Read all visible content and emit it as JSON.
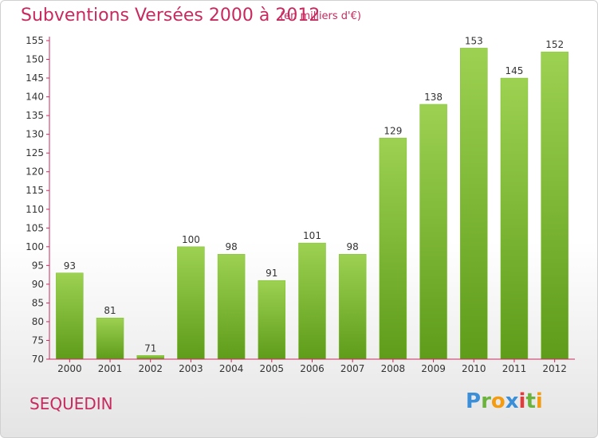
{
  "title": "Subventions Versées 2000 à 2012",
  "subtitle": "(en milliers d'€)",
  "city": "SEQUEDIN",
  "logo": {
    "text": "Proxiti",
    "letters": [
      {
        "ch": "P",
        "color": "#3a8fd8"
      },
      {
        "ch": "r",
        "color": "#6cb33e"
      },
      {
        "ch": "o",
        "color": "#f39c12"
      },
      {
        "ch": "x",
        "color": "#3a8fd8"
      },
      {
        "ch": "i",
        "color": "#e23b3b"
      },
      {
        "ch": "t",
        "color": "#6cb33e"
      },
      {
        "ch": "i",
        "color": "#f39c12"
      }
    ]
  },
  "colors": {
    "accent": "#c8295f",
    "bar_top": "#9dd151",
    "bar_bottom": "#5e9c1a",
    "axis": "#c8295f"
  },
  "chart_data": {
    "type": "bar",
    "title": "Subventions Versées 2000 à 2012",
    "subtitle": "(en milliers d'€)",
    "xlabel": "",
    "ylabel": "",
    "categories": [
      "2000",
      "2001",
      "2002",
      "2003",
      "2004",
      "2005",
      "2006",
      "2007",
      "2008",
      "2009",
      "2010",
      "2011",
      "2012"
    ],
    "values": [
      93,
      81,
      71,
      100,
      98,
      91,
      101,
      98,
      129,
      138,
      153,
      145,
      152
    ],
    "ylim": [
      70,
      155
    ],
    "yticks": [
      70,
      75,
      80,
      85,
      90,
      95,
      100,
      105,
      110,
      115,
      120,
      125,
      130,
      135,
      140,
      145,
      150,
      155
    ],
    "grid": false,
    "legend": "none"
  }
}
